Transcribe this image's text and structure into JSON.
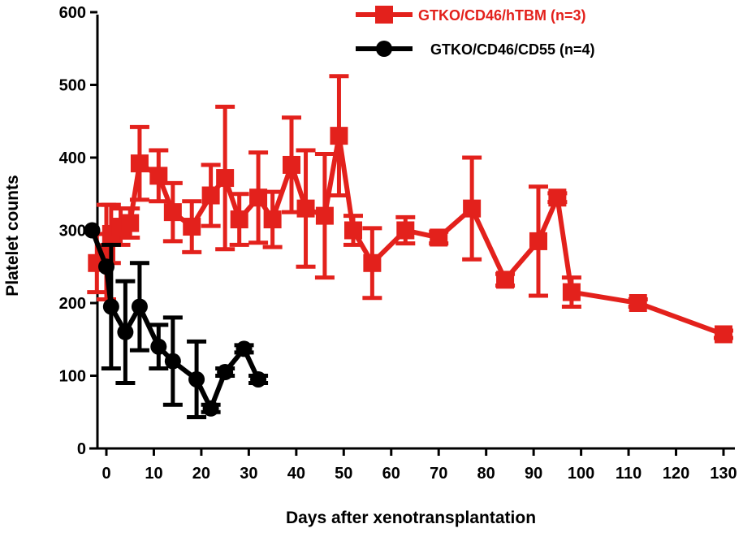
{
  "chart_data": {
    "type": "line",
    "xlabel": "Days after xenotransplantation",
    "ylabel": "Platelet counts",
    "xlim": [
      -3,
      132
    ],
    "ylim": [
      0,
      600
    ],
    "x_ticks": [
      0,
      10,
      20,
      30,
      40,
      50,
      60,
      70,
      80,
      90,
      100,
      110,
      120,
      130
    ],
    "y_ticks": [
      0,
      100,
      200,
      300,
      400,
      500,
      600
    ],
    "grid": false,
    "legend_position": "top-right",
    "series": [
      {
        "name": "GTKO/CD46/hTBM (n=3)",
        "color": "#e3211c",
        "marker": "square",
        "points": [
          {
            "x": -2,
            "y": 255,
            "err": 40
          },
          {
            "x": 0,
            "y": 270,
            "err": 65
          },
          {
            "x": 1,
            "y": 295,
            "err": 40
          },
          {
            "x": 3,
            "y": 305,
            "err": 25
          },
          {
            "x": 5,
            "y": 310,
            "err": 20
          },
          {
            "x": 7,
            "y": 392,
            "err": 50
          },
          {
            "x": 11,
            "y": 375,
            "err": 35
          },
          {
            "x": 14,
            "y": 325,
            "err": 40
          },
          {
            "x": 18,
            "y": 305,
            "err": 35
          },
          {
            "x": 22,
            "y": 348,
            "err": 42
          },
          {
            "x": 25,
            "y": 372,
            "err": 98
          },
          {
            "x": 28,
            "y": 315,
            "err": 35
          },
          {
            "x": 32,
            "y": 345,
            "err": 62
          },
          {
            "x": 35,
            "y": 315,
            "err": 38
          },
          {
            "x": 39,
            "y": 390,
            "err": 65
          },
          {
            "x": 42,
            "y": 330,
            "err": 80
          },
          {
            "x": 46,
            "y": 320,
            "err": 85
          },
          {
            "x": 49,
            "y": 430,
            "err": 82
          },
          {
            "x": 52,
            "y": 300,
            "err": 20
          },
          {
            "x": 56,
            "y": 255,
            "err": 48
          },
          {
            "x": 63,
            "y": 300,
            "err": 18
          },
          {
            "x": 70,
            "y": 290,
            "err": 8
          },
          {
            "x": 77,
            "y": 330,
            "err": 70
          },
          {
            "x": 84,
            "y": 232,
            "err": 8
          },
          {
            "x": 91,
            "y": 285,
            "err": 75
          },
          {
            "x": 95,
            "y": 345,
            "err": 6
          },
          {
            "x": 98,
            "y": 215,
            "err": 20
          },
          {
            "x": 112,
            "y": 200,
            "err": 5
          },
          {
            "x": 130,
            "y": 157,
            "err": 5
          }
        ]
      },
      {
        "name": "GTKO/CD46/CD55 (n=4)",
        "color": "#000000",
        "marker": "circle",
        "points": [
          {
            "x": -3,
            "y": 300,
            "err": 0
          },
          {
            "x": 0,
            "y": 250,
            "err": 0
          },
          {
            "x": 1,
            "y": 195,
            "err": 85
          },
          {
            "x": 4,
            "y": 160,
            "err": 70
          },
          {
            "x": 7,
            "y": 195,
            "err": 60
          },
          {
            "x": 11,
            "y": 140,
            "err": 30
          },
          {
            "x": 14,
            "y": 120,
            "err": 60
          },
          {
            "x": 19,
            "y": 95,
            "err": 52
          },
          {
            "x": 22,
            "y": 55,
            "err": 5
          },
          {
            "x": 25,
            "y": 105,
            "err": 5
          },
          {
            "x": 29,
            "y": 137,
            "err": 5
          },
          {
            "x": 32,
            "y": 95,
            "err": 5
          }
        ]
      }
    ]
  }
}
